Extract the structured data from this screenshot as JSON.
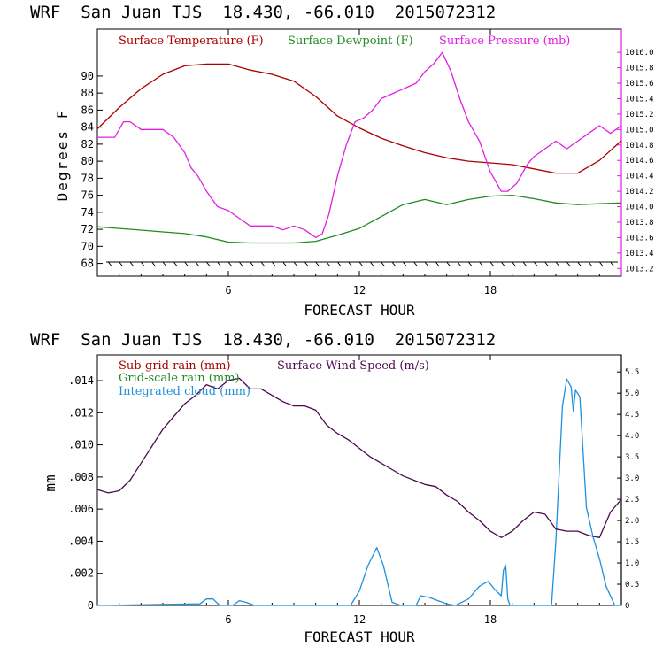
{
  "chart_data": [
    {
      "type": "line",
      "title": "WRF  San Juan TJS  18.430, -66.010  2015072312",
      "xlabel": "FORECAST HOUR",
      "ylabel": "Degrees F",
      "xlim": [
        0,
        24
      ],
      "xticks": [
        "6",
        "12",
        "18"
      ],
      "xtick_values": [
        6,
        12,
        18
      ],
      "ylim": [
        66.5,
        95.5
      ],
      "yticks": [
        "68",
        "70",
        "72",
        "74",
        "76",
        "78",
        "80",
        "82",
        "84",
        "86",
        "88",
        "90"
      ],
      "ytick_values": [
        68,
        70,
        72,
        74,
        76,
        78,
        80,
        82,
        84,
        86,
        88,
        90
      ],
      "y2lim": [
        1013.1,
        1016.3
      ],
      "y2ticks": [
        "1013.2",
        "1013.4",
        "1013.6",
        "1013.8",
        "1014.0",
        "1014.2",
        "1014.4",
        "1014.6",
        "1014.8",
        "1015.0",
        "1015.2",
        "1015.4",
        "1015.6",
        "1015.8",
        "1016.0"
      ],
      "y2tick_values": [
        1013.2,
        1013.4,
        1013.6,
        1013.8,
        1014.0,
        1014.2,
        1014.4,
        1014.6,
        1014.8,
        1015.0,
        1015.2,
        1015.4,
        1015.6,
        1015.8,
        1016.0
      ],
      "series": [
        {
          "name": "Surface Temperature (F)",
          "color": "#aa0000",
          "axis": "left",
          "x": [
            0,
            1,
            2,
            3,
            4,
            5,
            6,
            7,
            8,
            9,
            10,
            11,
            12,
            13,
            14,
            15,
            16,
            17,
            18,
            19,
            20,
            21,
            22,
            23,
            24
          ],
          "y": [
            83.8,
            86.3,
            88.5,
            90.2,
            91.2,
            91.4,
            91.4,
            90.7,
            90.2,
            89.4,
            87.6,
            85.3,
            83.9,
            82.7,
            81.8,
            81.0,
            80.4,
            80.0,
            79.8,
            79.6,
            79.1,
            78.6,
            78.6,
            80.1,
            82.4
          ]
        },
        {
          "name": "Surface Dewpoint (F)",
          "color": "#228b22",
          "axis": "left",
          "x": [
            0,
            1,
            2,
            3,
            4,
            5,
            6,
            7,
            8,
            9,
            10,
            11,
            12,
            13,
            14,
            15,
            16,
            17,
            18,
            19,
            20,
            21,
            22,
            23,
            24
          ],
          "y": [
            72.3,
            72.1,
            71.9,
            71.7,
            71.5,
            71.1,
            70.5,
            70.4,
            70.4,
            70.4,
            70.6,
            71.3,
            72.1,
            73.5,
            74.9,
            75.5,
            74.9,
            75.5,
            75.9,
            76.0,
            75.6,
            75.1,
            74.9,
            75.0,
            75.1
          ]
        },
        {
          "name": "Surface Pressure (mb)",
          "color": "#e020e0",
          "axis": "right",
          "x": [
            0,
            0.8,
            1.2,
            1.5,
            2,
            2.5,
            3,
            3.5,
            4,
            4.3,
            4.6,
            5,
            5.5,
            6,
            6.5,
            7,
            7.5,
            8,
            8.5,
            9,
            9.5,
            10,
            10.3,
            10.6,
            11,
            11.4,
            11.8,
            12.2,
            12.6,
            13,
            13.4,
            13.8,
            14.2,
            14.6,
            15,
            15.4,
            15.8,
            16.2,
            16.6,
            17,
            17.5,
            18,
            18.5,
            18.8,
            19.2,
            19.7,
            20,
            20.5,
            21,
            21.5,
            22,
            22.5,
            23,
            23.5,
            24
          ],
          "y": [
            1014.9,
            1014.9,
            1015.1,
            1015.1,
            1015.0,
            1015.0,
            1015.0,
            1014.9,
            1014.7,
            1014.5,
            1014.4,
            1014.2,
            1014.0,
            1013.95,
            1013.85,
            1013.75,
            1013.75,
            1013.75,
            1013.7,
            1013.75,
            1013.7,
            1013.6,
            1013.65,
            1013.9,
            1014.4,
            1014.8,
            1015.1,
            1015.15,
            1015.25,
            1015.4,
            1015.45,
            1015.5,
            1015.55,
            1015.6,
            1015.75,
            1015.85,
            1016.0,
            1015.75,
            1015.4,
            1015.1,
            1014.85,
            1014.45,
            1014.2,
            1014.2,
            1014.3,
            1014.55,
            1014.65,
            1014.75,
            1014.85,
            1014.75,
            1014.85,
            1014.95,
            1015.05,
            1014.95,
            1015.05
          ]
        }
      ],
      "wind_barbs": true
    },
    {
      "type": "line",
      "title": "WRF  San Juan TJS  18.430, -66.010  2015072312",
      "xlabel": "FORECAST HOUR",
      "ylabel": "mm",
      "xlim": [
        0,
        24
      ],
      "xticks": [
        "6",
        "12",
        "18"
      ],
      "xtick_values": [
        6,
        12,
        18
      ],
      "ylim": [
        0,
        0.0156
      ],
      "yticks": [
        "0",
        ".002",
        ".004",
        ".006",
        ".008",
        ".010",
        ".012",
        ".014"
      ],
      "ytick_values": [
        0,
        0.002,
        0.004,
        0.006,
        0.008,
        0.01,
        0.012,
        0.014
      ],
      "y2lim": [
        0,
        5.9
      ],
      "y2ticks": [
        "0",
        "0.5",
        "1.0",
        "1.5",
        "2.0",
        "2.5",
        "3.0",
        "3.5",
        "4.0",
        "4.5",
        "5.0",
        "5.5"
      ],
      "y2tick_values": [
        0,
        0.5,
        1.0,
        1.5,
        2.0,
        2.5,
        3.0,
        3.5,
        4.0,
        4.5,
        5.0,
        5.5
      ],
      "series": [
        {
          "name": "Sub-grid rain (mm)",
          "color": "#aa0000",
          "axis": "left",
          "x": [],
          "y": []
        },
        {
          "name": "Grid-scale rain (mm)",
          "color": "#228b22",
          "axis": "left",
          "x": [],
          "y": []
        },
        {
          "name": "Integrated cloud (mm)",
          "color": "#1e90dd",
          "axis": "left",
          "x": [
            0,
            4.7,
            5.0,
            5.3,
            5.6,
            6.2,
            6.5,
            6.8,
            7.2,
            11.6,
            12.0,
            12.4,
            12.8,
            13.1,
            13.5,
            13.9,
            14.2,
            14.6,
            14.8,
            15.2,
            15.6,
            16.0,
            16.4,
            17.0,
            17.5,
            17.9,
            18.2,
            18.5,
            18.6,
            18.7,
            18.8,
            18.9,
            20.8,
            21.0,
            21.3,
            21.5,
            21.7,
            21.8,
            21.9,
            22.1,
            22.4,
            22.7,
            23.0,
            23.3,
            23.7,
            24
          ],
          "y": [
            0,
            0.0001,
            0.0004,
            0.0004,
            0,
            0,
            0.0003,
            0.0002,
            0,
            0,
            0.0009,
            0.0025,
            0.0036,
            0.0025,
            0.0002,
            0,
            0,
            0,
            0.0006,
            0.0005,
            0.0003,
            0.0001,
            0,
            0.0004,
            0.0012,
            0.0015,
            0.001,
            0.0006,
            0.0022,
            0.0025,
            0.0004,
            0,
            0,
            0.004,
            0.0124,
            0.0141,
            0.0136,
            0.0121,
            0.0134,
            0.013,
            0.0061,
            0.0043,
            0.0029,
            0.0012,
            0,
            0
          ]
        },
        {
          "name": "Surface Wind Speed (m/s)",
          "color": "#4b0a50",
          "axis": "right",
          "x": [
            0,
            0.5,
            1,
            1.5,
            2,
            2.5,
            3,
            3.5,
            4,
            4.5,
            5,
            5.5,
            6,
            6.5,
            7,
            7.5,
            8,
            8.5,
            9,
            9.5,
            10,
            10.5,
            11,
            11.5,
            12,
            12.5,
            13,
            13.5,
            14,
            14.5,
            15,
            15.5,
            16,
            16.5,
            17,
            17.5,
            18,
            18.5,
            19,
            19.5,
            20,
            20.5,
            21,
            21.5,
            22,
            22.5,
            23,
            23.5,
            24
          ],
          "y": [
            2.73,
            2.65,
            2.7,
            2.95,
            3.35,
            3.75,
            4.15,
            4.45,
            4.75,
            4.95,
            5.2,
            5.1,
            5.3,
            5.35,
            5.1,
            5.1,
            4.95,
            4.8,
            4.7,
            4.7,
            4.6,
            4.25,
            4.05,
            3.9,
            3.7,
            3.5,
            3.35,
            3.2,
            3.05,
            2.95,
            2.85,
            2.8,
            2.6,
            2.45,
            2.2,
            2.0,
            1.75,
            1.6,
            1.75,
            2.0,
            2.2,
            2.15,
            1.8,
            1.75,
            1.75,
            1.65,
            1.6,
            2.2,
            2.5
          ]
        }
      ]
    }
  ]
}
